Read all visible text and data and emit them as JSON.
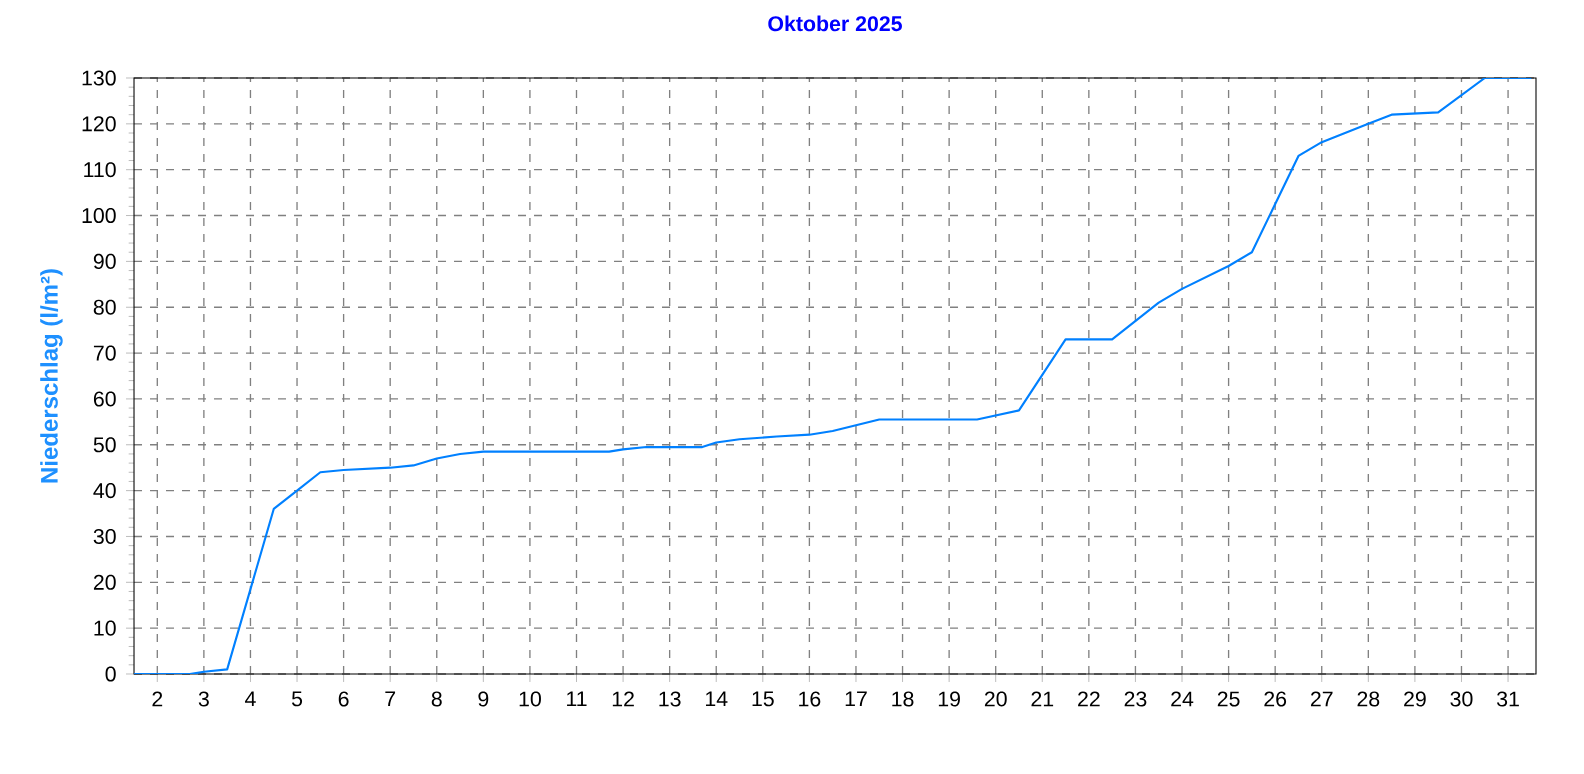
{
  "chart_data": {
    "type": "line",
    "title": "Oktober 2025",
    "ylabel": "Niederschlag (l/m²)",
    "x": [
      1.5,
      2.7,
      3.0,
      3.5,
      4.5,
      5.0,
      5.5,
      6.0,
      7.0,
      7.5,
      8.0,
      8.5,
      9.0,
      11.7,
      12.0,
      12.5,
      13.7,
      14.0,
      14.5,
      15.3,
      16.0,
      16.5,
      17.5,
      19.6,
      20.5,
      21.5,
      22.5,
      23.5,
      24.0,
      25.0,
      25.5,
      26.5,
      27.0,
      28.0,
      28.5,
      29.5,
      30.5,
      31.5
    ],
    "values": [
      0,
      0,
      0.5,
      1,
      36,
      40,
      44,
      44.5,
      45,
      45.5,
      47,
      48,
      48.5,
      48.5,
      49,
      49.5,
      49.5,
      50.5,
      51.2,
      51.8,
      52.2,
      53,
      55.5,
      55.5,
      57.5,
      73,
      73,
      81,
      84,
      89,
      92,
      113,
      116,
      120,
      122,
      122.5,
      130,
      130
    ],
    "color": "#0080ff",
    "xlim": [
      1.5,
      31.6
    ],
    "xticks": [
      2,
      3,
      4,
      5,
      6,
      7,
      8,
      9,
      10,
      11,
      12,
      13,
      14,
      15,
      16,
      17,
      18,
      19,
      20,
      21,
      22,
      23,
      24,
      25,
      26,
      27,
      28,
      29,
      30,
      31
    ],
    "ylim": [
      0,
      130
    ],
    "yticks": [
      0,
      10,
      20,
      30,
      40,
      50,
      60,
      70,
      80,
      90,
      100,
      110,
      120,
      130
    ],
    "grid": true,
    "marker": "none",
    "line_style": "solid"
  }
}
